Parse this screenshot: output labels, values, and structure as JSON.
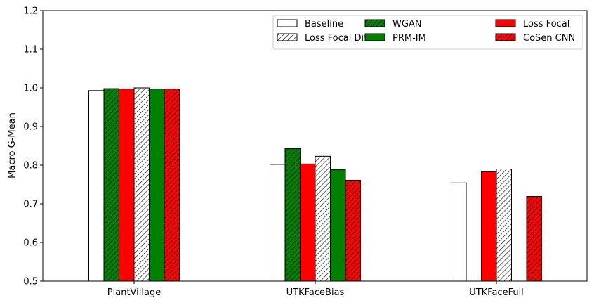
{
  "chart_data": {
    "type": "bar",
    "title": "",
    "xlabel": "",
    "ylabel": "Macro G-Mean",
    "ylim": [
      0.5,
      1.2
    ],
    "yticks": [
      "0.5",
      "0.6",
      "0.7",
      "0.8",
      "0.9",
      "1.0",
      "1.1",
      "1.2"
    ],
    "grid": false,
    "legend_position": "top-right",
    "legend_columns": 3,
    "categories": [
      "PlantVillage",
      "UTKFaceBias",
      "UTKFaceFull"
    ],
    "series": [
      {
        "name": "Baseline",
        "fill": "#ffffff",
        "hatch": false,
        "values": [
          0.993,
          0.802,
          0.754
        ]
      },
      {
        "name": "WGAN",
        "fill": "#008000",
        "hatch": true,
        "values": [
          0.998,
          0.843,
          null
        ]
      },
      {
        "name": "Loss Focal",
        "fill": "#ff0000",
        "hatch": false,
        "values": [
          0.997,
          0.803,
          0.783
        ]
      },
      {
        "name": "Loss Focal Difusa",
        "fill": "#ffffff",
        "hatch": true,
        "values": [
          1.0,
          0.823,
          0.79
        ]
      },
      {
        "name": "PRM-IM",
        "fill": "#008000",
        "hatch": false,
        "values": [
          0.997,
          0.788,
          null
        ]
      },
      {
        "name": "CoSen CNN",
        "fill": "#ff0000",
        "hatch": true,
        "values": [
          0.997,
          0.761,
          0.719
        ]
      }
    ]
  }
}
